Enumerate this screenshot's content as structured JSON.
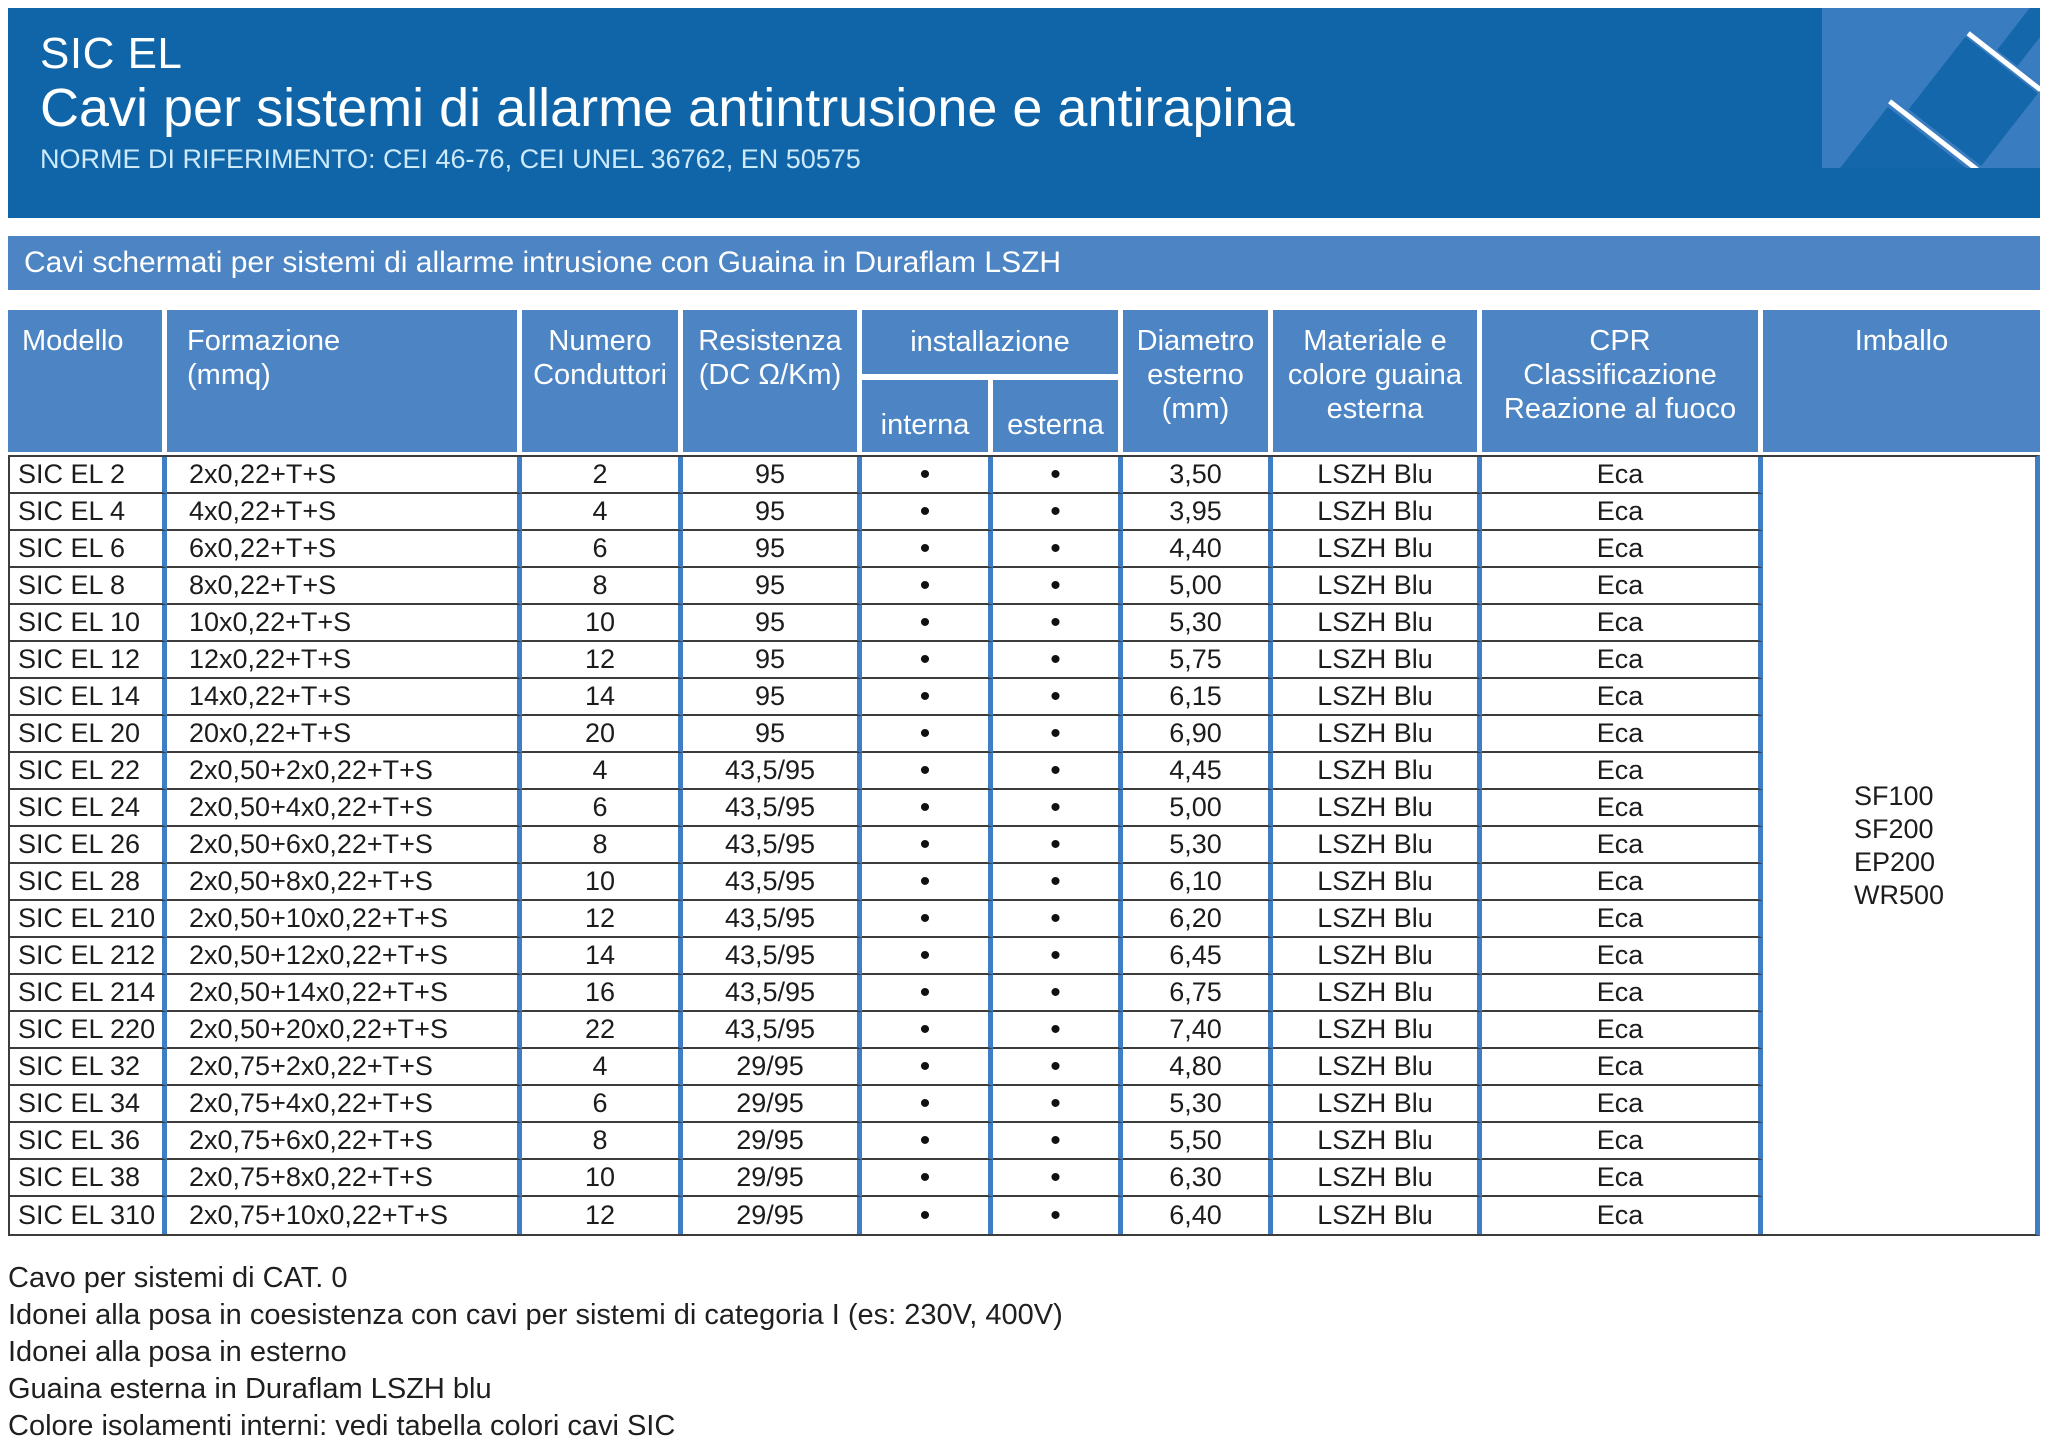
{
  "header": {
    "product": "SIC EL",
    "title": "Cavi per sistemi di allarme antintrusione e antirapina",
    "norms": "NORME DI RIFERIMENTO: CEI 46-76, CEI UNEL 36762, EN 50575"
  },
  "banner": {
    "text": "Cavi schermati per sistemi di allarme intrusione con Guaina in Duraflam LSZH"
  },
  "table": {
    "headers": {
      "modello": "Modello",
      "formazione": "Formazione\n(mmq)",
      "numero_conduttori": "Numero\nConduttori",
      "resistenza": "Resistenza\n(DC Ω/Km)",
      "installazione": "installazione",
      "interna": "interna",
      "esterna": "esterna",
      "diametro": "Diametro\nesterno\n(mm)",
      "materiale": "Materiale e\ncolore guaina\nesterna",
      "cpr": "CPR\nClassificazione\nReazione al fuoco",
      "imballo": "Imballo"
    },
    "col_keys": [
      "modello",
      "formazione",
      "numero-conduttori",
      "resistenza",
      "installazione-interna",
      "installazione-esterna",
      "diametro-esterno",
      "materiale-guaina",
      "cpr-classificazione"
    ],
    "rows": [
      [
        "SIC EL 2",
        "2x0,22+T+S",
        "2",
        "95",
        "•",
        "•",
        "3,50",
        "LSZH Blu",
        "Eca"
      ],
      [
        "SIC EL 4",
        "4x0,22+T+S",
        "4",
        "95",
        "•",
        "•",
        "3,95",
        "LSZH Blu",
        "Eca"
      ],
      [
        "SIC EL 6",
        "6x0,22+T+S",
        "6",
        "95",
        "•",
        "•",
        "4,40",
        "LSZH Blu",
        "Eca"
      ],
      [
        "SIC EL 8",
        "8x0,22+T+S",
        "8",
        "95",
        "•",
        "•",
        "5,00",
        "LSZH Blu",
        "Eca"
      ],
      [
        "SIC EL 10",
        "10x0,22+T+S",
        "10",
        "95",
        "•",
        "•",
        "5,30",
        "LSZH Blu",
        "Eca"
      ],
      [
        "SIC EL 12",
        "12x0,22+T+S",
        "12",
        "95",
        "•",
        "•",
        "5,75",
        "LSZH Blu",
        "Eca"
      ],
      [
        "SIC EL 14",
        "14x0,22+T+S",
        "14",
        "95",
        "•",
        "•",
        "6,15",
        "LSZH Blu",
        "Eca"
      ],
      [
        "SIC EL 20",
        "20x0,22+T+S",
        "20",
        "95",
        "•",
        "•",
        "6,90",
        "LSZH Blu",
        "Eca"
      ],
      [
        "SIC EL 22",
        "2x0,50+2x0,22+T+S",
        "4",
        "43,5/95",
        "•",
        "•",
        "4,45",
        "LSZH Blu",
        "Eca"
      ],
      [
        "SIC EL 24",
        "2x0,50+4x0,22+T+S",
        "6",
        "43,5/95",
        "•",
        "•",
        "5,00",
        "LSZH Blu",
        "Eca"
      ],
      [
        "SIC EL 26",
        "2x0,50+6x0,22+T+S",
        "8",
        "43,5/95",
        "•",
        "•",
        "5,30",
        "LSZH Blu",
        "Eca"
      ],
      [
        "SIC EL 28",
        "2x0,50+8x0,22+T+S",
        "10",
        "43,5/95",
        "•",
        "•",
        "6,10",
        "LSZH Blu",
        "Eca"
      ],
      [
        "SIC EL 210",
        "2x0,50+10x0,22+T+S",
        "12",
        "43,5/95",
        "•",
        "•",
        "6,20",
        "LSZH Blu",
        "Eca"
      ],
      [
        "SIC EL 212",
        "2x0,50+12x0,22+T+S",
        "14",
        "43,5/95",
        "•",
        "•",
        "6,45",
        "LSZH Blu",
        "Eca"
      ],
      [
        "SIC EL 214",
        "2x0,50+14x0,22+T+S",
        "16",
        "43,5/95",
        "•",
        "•",
        "6,75",
        "LSZH Blu",
        "Eca"
      ],
      [
        "SIC EL 220",
        "2x0,50+20x0,22+T+S",
        "22",
        "43,5/95",
        "•",
        "•",
        "7,40",
        "LSZH Blu",
        "Eca"
      ],
      [
        "SIC EL 32",
        "2x0,75+2x0,22+T+S",
        "4",
        "29/95",
        "•",
        "•",
        "4,80",
        "LSZH Blu",
        "Eca"
      ],
      [
        "SIC EL 34",
        "2x0,75+4x0,22+T+S",
        "6",
        "29/95",
        "•",
        "•",
        "5,30",
        "LSZH Blu",
        "Eca"
      ],
      [
        "SIC EL 36",
        "2x0,75+6x0,22+T+S",
        "8",
        "29/95",
        "•",
        "•",
        "5,50",
        "LSZH Blu",
        "Eca"
      ],
      [
        "SIC EL 38",
        "2x0,75+8x0,22+T+S",
        "10",
        "29/95",
        "•",
        "•",
        "6,30",
        "LSZH Blu",
        "Eca"
      ],
      [
        "SIC EL 310",
        "2x0,75+10x0,22+T+S",
        "12",
        "29/95",
        "•",
        "•",
        "6,40",
        "LSZH Blu",
        "Eca"
      ]
    ],
    "imballo_values": [
      "SF100",
      "SF200",
      "EP200",
      "WR500"
    ]
  },
  "footer": {
    "lines": [
      "Cavo per sistemi di CAT. 0",
      "Idonei alla posa in coesistenza con cavi per sistemi di categoria I (es: 230V, 400V)",
      "Idonei alla posa in esterno",
      "Guaina esterna in Duraflam LSZH blu",
      "Colore isolamenti interni: vedi tabella colori cavi SIC"
    ]
  },
  "colors": {
    "header_blue": "#1065a9",
    "cell_blue": "#4c84c4",
    "line_blue": "#3f7dc4",
    "row_separator": "#3c3c3c",
    "norms_text": "#cdeafb"
  }
}
